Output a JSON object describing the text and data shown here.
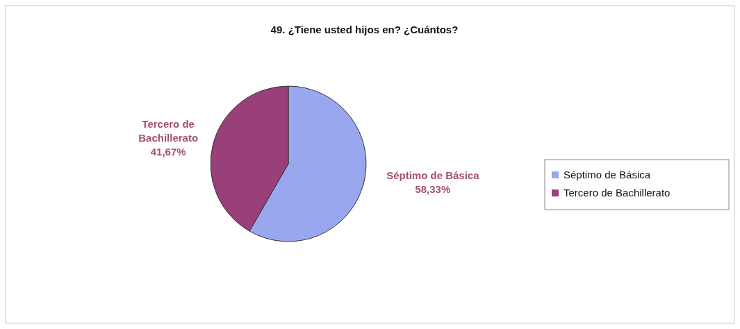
{
  "chart_data": {
    "type": "pie",
    "title": "49. ¿Tiene usted hijos en? ¿Cuántos?",
    "categories": [
      "Séptimo de Básica",
      "Tercero de Bachillerato"
    ],
    "values": [
      58.33,
      41.67
    ],
    "value_labels": [
      "58,33%",
      "41,67%"
    ],
    "colors": [
      "#99a8ee",
      "#993f7a"
    ],
    "legend": "right"
  }
}
